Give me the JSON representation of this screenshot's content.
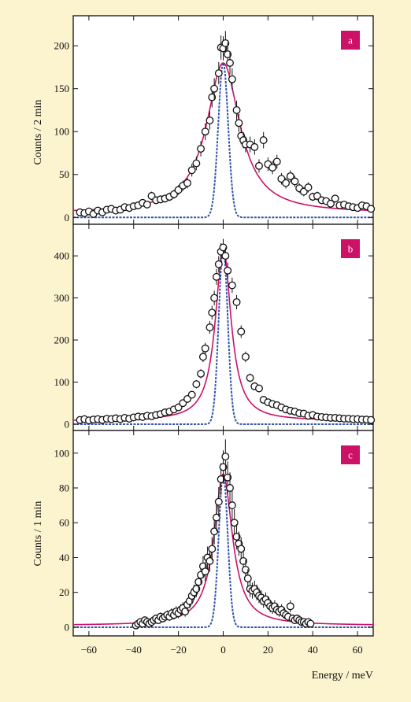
{
  "figure": {
    "xlabel": "Energy / meV",
    "ylabel_top": "Counts / 2 min",
    "ylabel_bottom": "Counts / 1 min"
  },
  "chart_data": [
    {
      "type": "scatter",
      "panel_label": "a",
      "xlim": [
        -67,
        67
      ],
      "ylim": [
        -8,
        235
      ],
      "xticks": [
        -60,
        -40,
        -20,
        0,
        20,
        40,
        60
      ],
      "yticks": [
        0,
        50,
        100,
        150,
        200
      ],
      "grid": false,
      "colors": {
        "fit": "#cc1166",
        "resolution": "#3355aa",
        "badge": "#cc1166"
      },
      "model": {
        "fit_amplitude": 180,
        "fit_hwhm": 9,
        "fit_baseline": 5,
        "resolution_amplitude": 180,
        "resolution_sigma": 2.2
      },
      "points": [
        {
          "x": -64,
          "y": 6
        },
        {
          "x": -62,
          "y": 5
        },
        {
          "x": -60,
          "y": 7
        },
        {
          "x": -58,
          "y": 4
        },
        {
          "x": -56,
          "y": 8
        },
        {
          "x": -54,
          "y": 6
        },
        {
          "x": -52,
          "y": 9
        },
        {
          "x": -50,
          "y": 10
        },
        {
          "x": -48,
          "y": 8
        },
        {
          "x": -46,
          "y": 9
        },
        {
          "x": -44,
          "y": 12
        },
        {
          "x": -42,
          "y": 11
        },
        {
          "x": -40,
          "y": 13
        },
        {
          "x": -38,
          "y": 14
        },
        {
          "x": -36,
          "y": 17
        },
        {
          "x": -34,
          "y": 15
        },
        {
          "x": -32,
          "y": 25
        },
        {
          "x": -30,
          "y": 20
        },
        {
          "x": -28,
          "y": 21
        },
        {
          "x": -26,
          "y": 22
        },
        {
          "x": -24,
          "y": 24
        },
        {
          "x": -22,
          "y": 27
        },
        {
          "x": -20,
          "y": 32
        },
        {
          "x": -18,
          "y": 37
        },
        {
          "x": -16,
          "y": 40
        },
        {
          "x": -14,
          "y": 55
        },
        {
          "x": -12,
          "y": 63
        },
        {
          "x": -10,
          "y": 80
        },
        {
          "x": -8,
          "y": 100
        },
        {
          "x": -6,
          "y": 113
        },
        {
          "x": -5,
          "y": 140
        },
        {
          "x": -4,
          "y": 150
        },
        {
          "x": -2,
          "y": 168
        },
        {
          "x": -1,
          "y": 198
        },
        {
          "x": 0,
          "y": 197
        },
        {
          "x": 1,
          "y": 203
        },
        {
          "x": 2,
          "y": 190
        },
        {
          "x": 3,
          "y": 180
        },
        {
          "x": 4,
          "y": 161
        },
        {
          "x": 6,
          "y": 125
        },
        {
          "x": 7,
          "y": 110
        },
        {
          "x": 8,
          "y": 95
        },
        {
          "x": 9,
          "y": 90
        },
        {
          "x": 10,
          "y": 85
        },
        {
          "x": 12,
          "y": 85
        },
        {
          "x": 14,
          "y": 82
        },
        {
          "x": 16,
          "y": 60
        },
        {
          "x": 18,
          "y": 90
        },
        {
          "x": 20,
          "y": 62
        },
        {
          "x": 22,
          "y": 58
        },
        {
          "x": 24,
          "y": 65
        },
        {
          "x": 26,
          "y": 45
        },
        {
          "x": 28,
          "y": 40
        },
        {
          "x": 30,
          "y": 48
        },
        {
          "x": 32,
          "y": 42
        },
        {
          "x": 34,
          "y": 34
        },
        {
          "x": 36,
          "y": 30
        },
        {
          "x": 38,
          "y": 35
        },
        {
          "x": 40,
          "y": 24
        },
        {
          "x": 42,
          "y": 25
        },
        {
          "x": 44,
          "y": 20
        },
        {
          "x": 46,
          "y": 19
        },
        {
          "x": 48,
          "y": 16
        },
        {
          "x": 50,
          "y": 22
        },
        {
          "x": 52,
          "y": 14
        },
        {
          "x": 54,
          "y": 15
        },
        {
          "x": 56,
          "y": 13
        },
        {
          "x": 58,
          "y": 12
        },
        {
          "x": 60,
          "y": 11
        },
        {
          "x": 62,
          "y": 14
        },
        {
          "x": 64,
          "y": 13
        },
        {
          "x": 66,
          "y": 10
        }
      ]
    },
    {
      "type": "scatter",
      "panel_label": "b",
      "xlim": [
        -67,
        67
      ],
      "ylim": [
        -15,
        475
      ],
      "xticks": [
        -60,
        -40,
        -20,
        0,
        20,
        40,
        60
      ],
      "yticks": [
        0,
        100,
        200,
        300,
        400
      ],
      "grid": false,
      "colors": {
        "fit": "#cc1166",
        "resolution": "#3355aa",
        "badge": "#cc1166"
      },
      "model": {
        "fit_amplitude": 420,
        "fit_hwhm": 4.2,
        "fit_baseline": 8,
        "resolution_amplitude": 420,
        "resolution_sigma": 2.0
      },
      "points": [
        {
          "x": -64,
          "y": 10
        },
        {
          "x": -62,
          "y": 12
        },
        {
          "x": -60,
          "y": 9
        },
        {
          "x": -58,
          "y": 11
        },
        {
          "x": -56,
          "y": 12
        },
        {
          "x": -54,
          "y": 10
        },
        {
          "x": -52,
          "y": 13
        },
        {
          "x": -50,
          "y": 12
        },
        {
          "x": -48,
          "y": 14
        },
        {
          "x": -46,
          "y": 12
        },
        {
          "x": -44,
          "y": 15
        },
        {
          "x": -42,
          "y": 13
        },
        {
          "x": -40,
          "y": 16
        },
        {
          "x": -38,
          "y": 18
        },
        {
          "x": -36,
          "y": 17
        },
        {
          "x": -34,
          "y": 20
        },
        {
          "x": -32,
          "y": 19
        },
        {
          "x": -30,
          "y": 22
        },
        {
          "x": -28,
          "y": 24
        },
        {
          "x": -26,
          "y": 28
        },
        {
          "x": -24,
          "y": 30
        },
        {
          "x": -22,
          "y": 35
        },
        {
          "x": -20,
          "y": 40
        },
        {
          "x": -18,
          "y": 50
        },
        {
          "x": -16,
          "y": 60
        },
        {
          "x": -14,
          "y": 70
        },
        {
          "x": -12,
          "y": 95
        },
        {
          "x": -10,
          "y": 120
        },
        {
          "x": -9,
          "y": 160
        },
        {
          "x": -8,
          "y": 180
        },
        {
          "x": -6,
          "y": 230
        },
        {
          "x": -5,
          "y": 265
        },
        {
          "x": -4,
          "y": 300
        },
        {
          "x": -3,
          "y": 350
        },
        {
          "x": -2,
          "y": 380
        },
        {
          "x": -1,
          "y": 410
        },
        {
          "x": 0,
          "y": 420
        },
        {
          "x": 1,
          "y": 400
        },
        {
          "x": 2,
          "y": 365
        },
        {
          "x": 4,
          "y": 330
        },
        {
          "x": 6,
          "y": 290
        },
        {
          "x": 8,
          "y": 220
        },
        {
          "x": 10,
          "y": 160
        },
        {
          "x": 12,
          "y": 110
        },
        {
          "x": 14,
          "y": 90
        },
        {
          "x": 16,
          "y": 85
        },
        {
          "x": 18,
          "y": 58
        },
        {
          "x": 20,
          "y": 52
        },
        {
          "x": 22,
          "y": 48
        },
        {
          "x": 24,
          "y": 45
        },
        {
          "x": 26,
          "y": 40
        },
        {
          "x": 28,
          "y": 35
        },
        {
          "x": 30,
          "y": 32
        },
        {
          "x": 32,
          "y": 30
        },
        {
          "x": 34,
          "y": 26
        },
        {
          "x": 36,
          "y": 25
        },
        {
          "x": 38,
          "y": 20
        },
        {
          "x": 40,
          "y": 22
        },
        {
          "x": 42,
          "y": 18
        },
        {
          "x": 44,
          "y": 17
        },
        {
          "x": 46,
          "y": 16
        },
        {
          "x": 48,
          "y": 15
        },
        {
          "x": 50,
          "y": 15
        },
        {
          "x": 52,
          "y": 14
        },
        {
          "x": 54,
          "y": 13
        },
        {
          "x": 56,
          "y": 13
        },
        {
          "x": 58,
          "y": 12
        },
        {
          "x": 60,
          "y": 12
        },
        {
          "x": 62,
          "y": 11
        },
        {
          "x": 64,
          "y": 11
        },
        {
          "x": 66,
          "y": 10
        }
      ]
    },
    {
      "type": "scatter",
      "panel_label": "c",
      "xlim": [
        -67,
        67
      ],
      "ylim": [
        -5,
        113
      ],
      "xticks": [
        -60,
        -40,
        -20,
        0,
        20,
        40,
        60
      ],
      "yticks": [
        0,
        20,
        40,
        60,
        80,
        100
      ],
      "grid": false,
      "colors": {
        "fit": "#cc1166",
        "resolution": "#3355aa",
        "badge": "#cc1166"
      },
      "model": {
        "fit_amplitude": 88,
        "fit_hwhm": 5,
        "fit_baseline": 1,
        "resolution_amplitude": 88,
        "resolution_sigma": 2.0
      },
      "points": [
        {
          "x": -39,
          "y": 1
        },
        {
          "x": -38,
          "y": 2
        },
        {
          "x": -37,
          "y": 3
        },
        {
          "x": -36,
          "y": 2
        },
        {
          "x": -35,
          "y": 4
        },
        {
          "x": -34,
          "y": 3
        },
        {
          "x": -33,
          "y": 2
        },
        {
          "x": -32,
          "y": 3
        },
        {
          "x": -31,
          "y": 4
        },
        {
          "x": -30,
          "y": 5
        },
        {
          "x": -29,
          "y": 4
        },
        {
          "x": -28,
          "y": 6
        },
        {
          "x": -27,
          "y": 5
        },
        {
          "x": -26,
          "y": 6
        },
        {
          "x": -25,
          "y": 7
        },
        {
          "x": -24,
          "y": 6
        },
        {
          "x": -23,
          "y": 8
        },
        {
          "x": -22,
          "y": 7
        },
        {
          "x": -21,
          "y": 9
        },
        {
          "x": -20,
          "y": 8
        },
        {
          "x": -19,
          "y": 10
        },
        {
          "x": -18,
          "y": 11
        },
        {
          "x": -17,
          "y": 9
        },
        {
          "x": -16,
          "y": 13
        },
        {
          "x": -15,
          "y": 15
        },
        {
          "x": -14,
          "y": 18
        },
        {
          "x": -13,
          "y": 20
        },
        {
          "x": -12,
          "y": 22
        },
        {
          "x": -11,
          "y": 26
        },
        {
          "x": -10,
          "y": 30
        },
        {
          "x": -9,
          "y": 35
        },
        {
          "x": -8,
          "y": 32
        },
        {
          "x": -7,
          "y": 40
        },
        {
          "x": -6,
          "y": 38
        },
        {
          "x": -5,
          "y": 45
        },
        {
          "x": -4,
          "y": 55
        },
        {
          "x": -3,
          "y": 63
        },
        {
          "x": -2,
          "y": 72
        },
        {
          "x": -1,
          "y": 85
        },
        {
          "x": 0,
          "y": 92
        },
        {
          "x": 1,
          "y": 98
        },
        {
          "x": 2,
          "y": 86
        },
        {
          "x": 3,
          "y": 80
        },
        {
          "x": 4,
          "y": 70
        },
        {
          "x": 5,
          "y": 60
        },
        {
          "x": 6,
          "y": 52
        },
        {
          "x": 7,
          "y": 48
        },
        {
          "x": 8,
          "y": 45
        },
        {
          "x": 9,
          "y": 38
        },
        {
          "x": 10,
          "y": 33
        },
        {
          "x": 11,
          "y": 28
        },
        {
          "x": 12,
          "y": 22
        },
        {
          "x": 13,
          "y": 21
        },
        {
          "x": 14,
          "y": 22
        },
        {
          "x": 15,
          "y": 20
        },
        {
          "x": 16,
          "y": 18
        },
        {
          "x": 17,
          "y": 17
        },
        {
          "x": 18,
          "y": 15
        },
        {
          "x": 19,
          "y": 16
        },
        {
          "x": 20,
          "y": 14
        },
        {
          "x": 21,
          "y": 12
        },
        {
          "x": 22,
          "y": 11
        },
        {
          "x": 23,
          "y": 12
        },
        {
          "x": 24,
          "y": 10
        },
        {
          "x": 25,
          "y": 9
        },
        {
          "x": 26,
          "y": 10
        },
        {
          "x": 27,
          "y": 8
        },
        {
          "x": 28,
          "y": 7
        },
        {
          "x": 29,
          "y": 6
        },
        {
          "x": 30,
          "y": 12
        },
        {
          "x": 31,
          "y": 5
        },
        {
          "x": 32,
          "y": 4
        },
        {
          "x": 33,
          "y": 5
        },
        {
          "x": 34,
          "y": 4
        },
        {
          "x": 35,
          "y": 3
        },
        {
          "x": 36,
          "y": 3
        },
        {
          "x": 37,
          "y": 2
        },
        {
          "x": 38,
          "y": 3
        },
        {
          "x": 39,
          "y": 2
        }
      ]
    }
  ]
}
